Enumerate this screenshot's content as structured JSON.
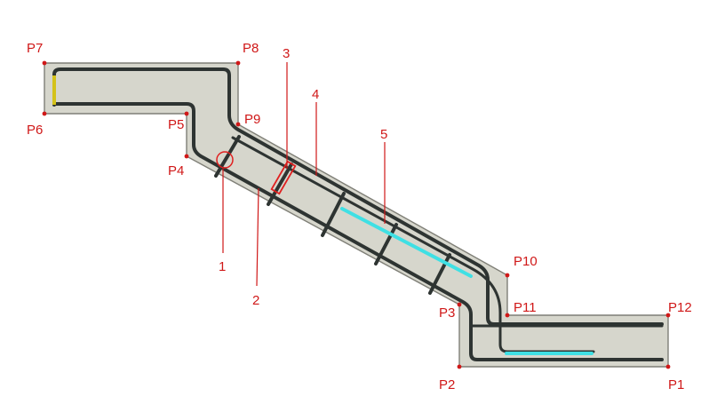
{
  "diagram": {
    "points": [
      "P1",
      "P2",
      "P3",
      "P4",
      "P5",
      "P6",
      "P7",
      "P8",
      "P9",
      "P10",
      "P11",
      "P12"
    ],
    "callouts": [
      "1",
      "2",
      "3",
      "4",
      "5"
    ],
    "colors": {
      "slab_fill": "#d6d6cc",
      "slab_stroke": "#7f7f77",
      "rebar": "#2e3432",
      "label_red": "#d01818",
      "highlight_yellow": "#d4c21a",
      "highlight_cyan": "#3fe0e4",
      "highlight_red": "#e02020"
    }
  }
}
